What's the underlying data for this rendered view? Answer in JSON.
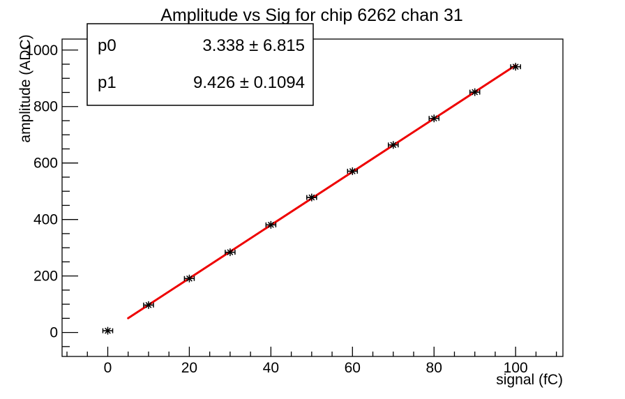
{
  "title": "Amplitude vs Sig for chip 6262 chan 31",
  "fit_box": {
    "rows": [
      {
        "name": "p0",
        "value": "3.338 ± 6.815"
      },
      {
        "name": "p1",
        "value": "9.426 ± 0.1094"
      }
    ]
  },
  "chart_data": {
    "type": "scatter",
    "title": "Amplitude vs Sig for chip 6262 chan 31",
    "xlabel": "signal (fC)",
    "ylabel": "amplitude (ADC)",
    "xlim": [
      -11.2,
      111.6
    ],
    "ylim": [
      -85,
      1039
    ],
    "x": [
      0,
      10,
      20,
      30,
      40,
      50,
      60,
      70,
      80,
      90,
      100
    ],
    "y": [
      6,
      97,
      191,
      284,
      381,
      478,
      571,
      664,
      758,
      851,
      941
    ],
    "x_error": 1.2,
    "x_ticks": {
      "label_values": [
        0,
        20,
        40,
        60,
        80,
        100
      ],
      "minor_step": 5,
      "minor_range": [
        -10,
        110
      ],
      "major_len": 14,
      "minor_len": 7
    },
    "y_ticks": {
      "label_values": [
        0,
        200,
        400,
        600,
        800,
        1000
      ],
      "minor_step": 50,
      "minor_range": [
        -50,
        1000
      ],
      "major_len": 23,
      "minor_len": 11
    },
    "fit": {
      "type": "pol1",
      "p0": 3.338,
      "p0_err": 6.815,
      "p1": 9.426,
      "p1_err": 0.1094,
      "range": [
        5,
        100
      ]
    },
    "marker": "asterisk",
    "grid": false,
    "legend_position": "stats-box-top-left",
    "colors": {
      "fit_line": "#ee0000",
      "marker": "#000000",
      "frame": "#000000",
      "background": "#ffffff"
    }
  }
}
